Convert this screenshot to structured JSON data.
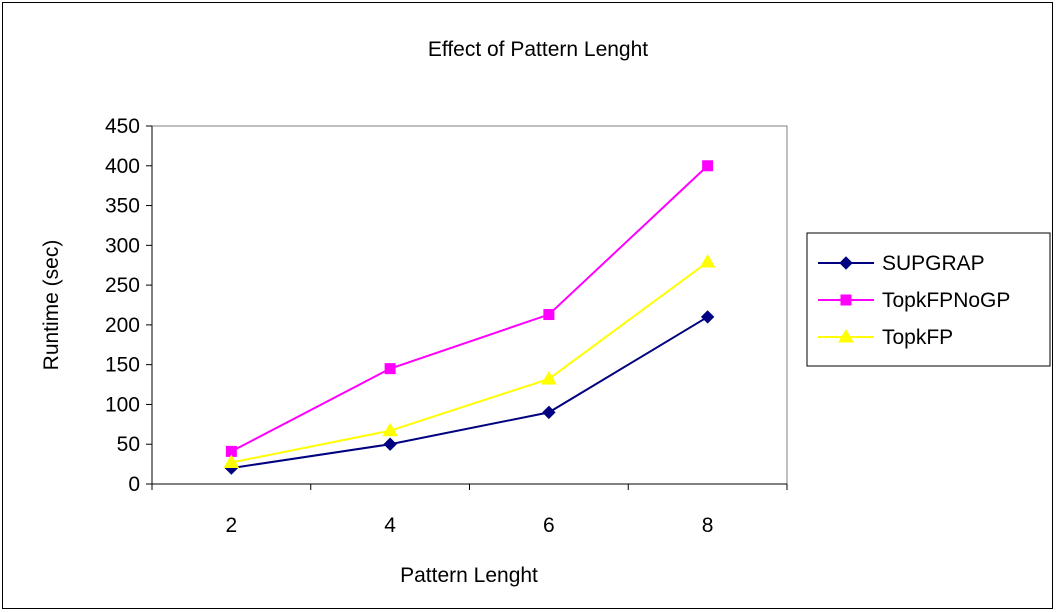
{
  "chart_data": {
    "type": "line",
    "title": "Effect of Pattern Lenght",
    "xlabel": "Pattern Lenght",
    "ylabel": "Runtime (sec)",
    "categories": [
      "2",
      "4",
      "6",
      "8"
    ],
    "ylim": [
      0,
      450
    ],
    "yticks": [
      "0",
      "50",
      "100",
      "150",
      "200",
      "250",
      "300",
      "350",
      "400",
      "450"
    ],
    "legend_position": "right",
    "grid": false,
    "series": [
      {
        "name": "SUPGRAP",
        "values": [
          20,
          50,
          90,
          210
        ],
        "color": "#000080",
        "marker": "diamond"
      },
      {
        "name": "TopkFPNoGP",
        "values": [
          41,
          145,
          213,
          400
        ],
        "color": "#FF00FF",
        "marker": "square"
      },
      {
        "name": "TopkFP",
        "values": [
          27,
          67,
          132,
          279
        ],
        "color": "#FFFF00",
        "marker": "triangle"
      }
    ]
  }
}
